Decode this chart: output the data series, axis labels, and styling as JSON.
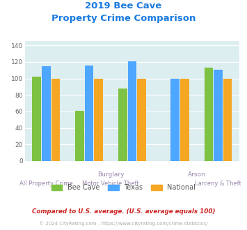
{
  "title_line1": "2019 Bee Cave",
  "title_line2": "Property Crime Comparison",
  "categories": [
    "All Property Crime",
    "Burglary",
    "Motor Vehicle Theft",
    "Arson",
    "Larceny & Theft"
  ],
  "bee_cave": [
    102,
    61,
    88,
    0,
    113
  ],
  "texas": [
    115,
    116,
    121,
    100,
    111
  ],
  "national": [
    100,
    100,
    100,
    100,
    100
  ],
  "bar_colors": {
    "bee_cave": "#7dc242",
    "texas": "#4da6ff",
    "national": "#f5a623"
  },
  "ylim": [
    0,
    145
  ],
  "yticks": [
    0,
    20,
    40,
    60,
    80,
    100,
    120,
    140
  ],
  "footnote1": "Compared to U.S. average. (U.S. average equals 100)",
  "footnote2": "© 2024 CityRating.com - https://www.cityrating.com/crime-statistics/",
  "bg_color": "#ddeef0",
  "title_color": "#1a7adf",
  "footnote1_color": "#cc2222",
  "footnote2_color": "#aaaaaa",
  "xlabel_color": "#9988aa"
}
